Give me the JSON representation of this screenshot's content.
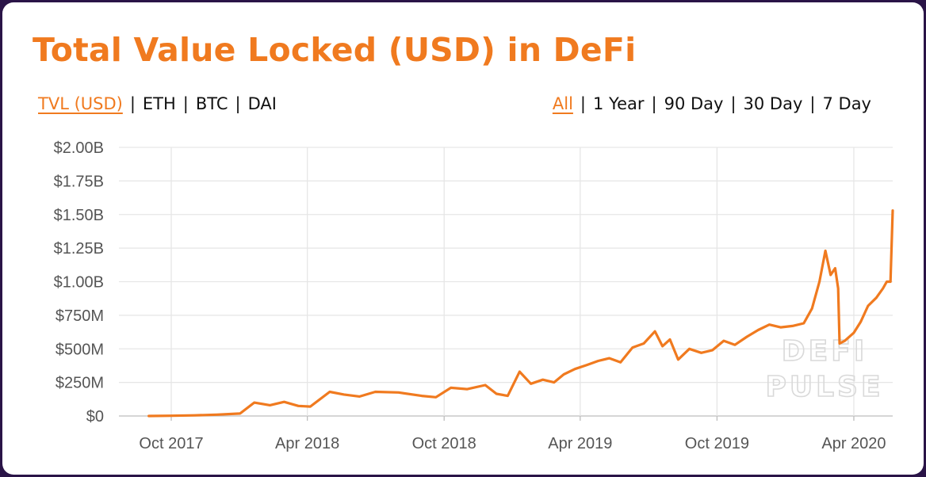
{
  "title": "Total Value Locked (USD) in DeFi",
  "colors": {
    "accent": "#f07a1f",
    "frame": "#2a1447",
    "grid": "#e6e6e6"
  },
  "metric_toggle": {
    "active": "TVL (USD)",
    "items": [
      "TVL (USD)",
      "ETH",
      "BTC",
      "DAI"
    ]
  },
  "range_toggle": {
    "active": "All",
    "items": [
      "All",
      "1 Year",
      "90 Day",
      "30 Day",
      "7 Day"
    ]
  },
  "watermark": {
    "line1": "DEFI",
    "line2": "PULSE"
  },
  "chart_data": {
    "type": "line",
    "title": "Total Value Locked (USD) in DeFi",
    "xlabel": "",
    "ylabel": "",
    "grid": true,
    "ylim": [
      0,
      2000000000
    ],
    "xlim": [
      "2017-09-01",
      "2020-05-15"
    ],
    "y_ticks": [
      {
        "value": 0,
        "label": "$0"
      },
      {
        "value": 250000000,
        "label": "$250M"
      },
      {
        "value": 500000000,
        "label": "$500M"
      },
      {
        "value": 750000000,
        "label": "$750M"
      },
      {
        "value": 1000000000,
        "label": "$1.00B"
      },
      {
        "value": 1250000000,
        "label": "$1.25B"
      },
      {
        "value": 1500000000,
        "label": "$1.50B"
      },
      {
        "value": 1750000000,
        "label": "$1.75B"
      },
      {
        "value": 2000000000,
        "label": "$2.00B"
      }
    ],
    "x_ticks": [
      {
        "date": "2017-10-01",
        "label": "Oct 2017"
      },
      {
        "date": "2018-04-01",
        "label": "Apr 2018"
      },
      {
        "date": "2018-10-01",
        "label": "Oct 2018"
      },
      {
        "date": "2019-04-01",
        "label": "Apr 2019"
      },
      {
        "date": "2019-10-01",
        "label": "Oct 2019"
      },
      {
        "date": "2020-04-01",
        "label": "Apr 2020"
      }
    ],
    "series": [
      {
        "color": "#f07a1f",
        "points": [
          [
            "2017-09-01",
            0
          ],
          [
            "2017-10-01",
            2000000
          ],
          [
            "2017-11-01",
            5000000
          ],
          [
            "2017-12-01",
            10000000
          ],
          [
            "2018-01-01",
            18000000
          ],
          [
            "2018-01-20",
            100000000
          ],
          [
            "2018-02-10",
            80000000
          ],
          [
            "2018-03-01",
            105000000
          ],
          [
            "2018-03-20",
            75000000
          ],
          [
            "2018-04-05",
            70000000
          ],
          [
            "2018-05-01",
            180000000
          ],
          [
            "2018-05-20",
            160000000
          ],
          [
            "2018-06-10",
            145000000
          ],
          [
            "2018-07-01",
            180000000
          ],
          [
            "2018-08-01",
            175000000
          ],
          [
            "2018-09-01",
            150000000
          ],
          [
            "2018-09-20",
            140000000
          ],
          [
            "2018-10-10",
            210000000
          ],
          [
            "2018-11-01",
            200000000
          ],
          [
            "2018-11-25",
            230000000
          ],
          [
            "2018-12-10",
            165000000
          ],
          [
            "2018-12-25",
            150000000
          ],
          [
            "2019-01-10",
            330000000
          ],
          [
            "2019-01-25",
            240000000
          ],
          [
            "2019-02-10",
            270000000
          ],
          [
            "2019-02-25",
            250000000
          ],
          [
            "2019-03-10",
            310000000
          ],
          [
            "2019-03-25",
            350000000
          ],
          [
            "2019-04-10",
            380000000
          ],
          [
            "2019-04-25",
            410000000
          ],
          [
            "2019-05-10",
            430000000
          ],
          [
            "2019-05-25",
            400000000
          ],
          [
            "2019-06-10",
            510000000
          ],
          [
            "2019-06-25",
            540000000
          ],
          [
            "2019-07-10",
            630000000
          ],
          [
            "2019-07-20",
            520000000
          ],
          [
            "2019-07-30",
            570000000
          ],
          [
            "2019-08-10",
            420000000
          ],
          [
            "2019-08-25",
            500000000
          ],
          [
            "2019-09-10",
            470000000
          ],
          [
            "2019-09-25",
            490000000
          ],
          [
            "2019-10-10",
            560000000
          ],
          [
            "2019-10-25",
            530000000
          ],
          [
            "2019-11-10",
            590000000
          ],
          [
            "2019-11-25",
            640000000
          ],
          [
            "2019-12-10",
            680000000
          ],
          [
            "2019-12-25",
            660000000
          ],
          [
            "2020-01-10",
            670000000
          ],
          [
            "2020-01-25",
            690000000
          ],
          [
            "2020-02-05",
            800000000
          ],
          [
            "2020-02-15",
            1000000000
          ],
          [
            "2020-02-23",
            1230000000
          ],
          [
            "2020-03-01",
            1050000000
          ],
          [
            "2020-03-07",
            1100000000
          ],
          [
            "2020-03-11",
            950000000
          ],
          [
            "2020-03-13",
            540000000
          ],
          [
            "2020-03-20",
            560000000
          ],
          [
            "2020-04-01",
            620000000
          ],
          [
            "2020-04-10",
            700000000
          ],
          [
            "2020-04-20",
            820000000
          ],
          [
            "2020-05-01",
            880000000
          ],
          [
            "2020-05-10",
            950000000
          ],
          [
            "2020-05-15",
            1000000000
          ],
          [
            "2020-05-20",
            1000000000
          ],
          [
            "2020-05-23",
            1530000000
          ]
        ]
      }
    ]
  }
}
